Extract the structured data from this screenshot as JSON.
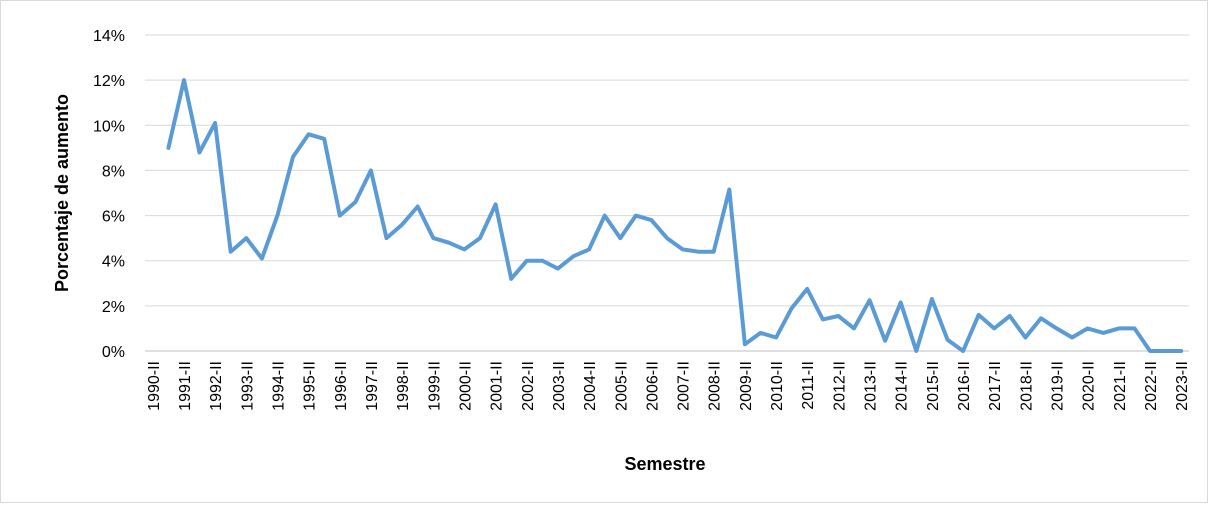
{
  "chart_data": {
    "type": "line",
    "xlabel": "Semestre",
    "ylabel": "Porcentaje de aumento",
    "categories": [
      "1990-II",
      null,
      "1991-II",
      null,
      "1992-II",
      null,
      "1993-II",
      null,
      "1994-II",
      null,
      "1995-II",
      null,
      "1996-II",
      null,
      "1997-II",
      null,
      "1998-II",
      null,
      "1999-II",
      null,
      "2000-II",
      null,
      "2001-II",
      null,
      "2002-II",
      null,
      "2003-II",
      null,
      "2004-II",
      null,
      "2005-II",
      null,
      "2006-II",
      null,
      "2007-II",
      null,
      "2008-II",
      null,
      "2009-II",
      null,
      "2010-II",
      null,
      "2011-II",
      null,
      "2012-II",
      null,
      "2013-II",
      null,
      "2014-II",
      null,
      "2015-II",
      null,
      "2016-II",
      null,
      "2017-II",
      null,
      "2018-II",
      null,
      "2019-II",
      null,
      "2020-II",
      null,
      "2021-II",
      null,
      "2022-II",
      null,
      "2023-II"
    ],
    "values": [
      null,
      9.0,
      12.0,
      8.8,
      10.1,
      4.4,
      5.0,
      4.1,
      6.0,
      8.6,
      9.6,
      9.4,
      6.0,
      6.6,
      8.0,
      5.0,
      5.6,
      6.4,
      5.0,
      4.8,
      4.5,
      5.0,
      6.5,
      3.2,
      4.0,
      4.0,
      3.65,
      4.2,
      4.5,
      6.0,
      5.0,
      6.0,
      5.8,
      5.0,
      4.5,
      4.4,
      4.4,
      7.15,
      0.3,
      0.8,
      0.6,
      1.9,
      2.75,
      1.4,
      1.55,
      1.0,
      2.25,
      0.45,
      2.15,
      0.0,
      2.3,
      0.5,
      0.0,
      1.6,
      1.0,
      1.55,
      0.6,
      1.45,
      1.0,
      0.6,
      1.0,
      0.8,
      1.0,
      1.0,
      0.0,
      0.0,
      0.0
    ],
    "color": "#5b9bd5",
    "ylim": [
      0,
      14
    ],
    "yticks": [
      {
        "value": 0,
        "label": "0%"
      },
      {
        "value": 2,
        "label": "2%"
      },
      {
        "value": 4,
        "label": "4%"
      },
      {
        "value": 6,
        "label": "6%"
      },
      {
        "value": 8,
        "label": "8%"
      },
      {
        "value": 10,
        "label": "10%"
      },
      {
        "value": 12,
        "label": "12%"
      },
      {
        "value": 14,
        "label": "14%"
      }
    ],
    "grid": true
  }
}
